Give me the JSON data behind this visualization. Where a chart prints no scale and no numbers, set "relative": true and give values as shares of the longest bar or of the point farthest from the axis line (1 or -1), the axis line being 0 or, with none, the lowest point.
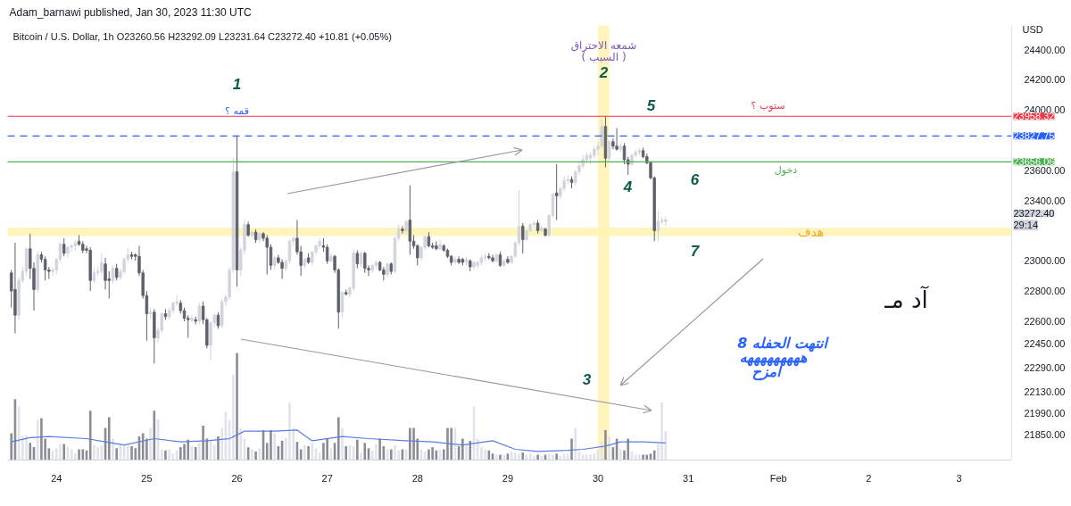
{
  "chart_data": [
    {
      "type": "candlestick",
      "title": "Bitcoin / U.S. Dollar, 1h  O23260.56  H23292.09  L23231.64  C23272.40  +10.81 (+0.05%)",
      "ylabel": "USD",
      "xlim": [
        "2023-01-23T11:00",
        "2023-02-03T14:00"
      ],
      "ylim": [
        21680,
        24560
      ],
      "tick_labels": "y",
      "yticks": [
        {
          "value": 24400,
          "label": "24400.00"
        },
        {
          "value": 24200,
          "label": "24200.00"
        },
        {
          "value": 24000,
          "label": "24000.00"
        },
        {
          "value": 23600,
          "label": "23600.00"
        },
        {
          "value": 23400,
          "label": "23400.00"
        },
        {
          "value": 23000,
          "label": "23000.00"
        },
        {
          "value": 22800,
          "label": "22800.00"
        },
        {
          "value": 22600,
          "label": "22600.00"
        },
        {
          "value": 22450,
          "label": "22450.00"
        },
        {
          "value": 22290,
          "label": "22290.00"
        },
        {
          "value": 22130,
          "label": "22130.00"
        },
        {
          "value": 21990,
          "label": "21990.00"
        },
        {
          "value": 21850,
          "label": "21850.00"
        }
      ],
      "x": [
        "2023-01-23T12:00",
        "2023-01-23T13:00",
        "2023-01-23T14:00",
        "2023-01-23T15:00",
        "2023-01-23T16:00",
        "2023-01-23T17:00",
        "2023-01-23T18:00",
        "2023-01-23T19:00",
        "2023-01-23T20:00",
        "2023-01-23T21:00",
        "2023-01-23T22:00",
        "2023-01-23T23:00",
        "2023-01-24T00:00",
        "2023-01-24T01:00",
        "2023-01-24T02:00",
        "2023-01-24T03:00",
        "2023-01-24T04:00",
        "2023-01-24T05:00",
        "2023-01-24T06:00",
        "2023-01-24T07:00",
        "2023-01-24T08:00",
        "2023-01-24T09:00",
        "2023-01-24T10:00",
        "2023-01-24T11:00",
        "2023-01-24T12:00",
        "2023-01-24T13:00",
        "2023-01-24T14:00",
        "2023-01-24T15:00",
        "2023-01-24T16:00",
        "2023-01-24T17:00",
        "2023-01-24T18:00",
        "2023-01-24T19:00",
        "2023-01-24T20:00",
        "2023-01-24T21:00",
        "2023-01-24T22:00",
        "2023-01-24T23:00",
        "2023-01-25T00:00",
        "2023-01-25T01:00",
        "2023-01-25T02:00",
        "2023-01-25T03:00",
        "2023-01-25T04:00",
        "2023-01-25T05:00",
        "2023-01-25T06:00",
        "2023-01-25T07:00",
        "2023-01-25T08:00",
        "2023-01-25T09:00",
        "2023-01-25T10:00",
        "2023-01-25T11:00",
        "2023-01-25T12:00",
        "2023-01-25T13:00",
        "2023-01-25T14:00",
        "2023-01-25T15:00",
        "2023-01-25T16:00",
        "2023-01-25T17:00",
        "2023-01-25T18:00",
        "2023-01-25T19:00",
        "2023-01-25T20:00",
        "2023-01-25T21:00",
        "2023-01-25T22:00",
        "2023-01-25T23:00",
        "2023-01-26T00:00",
        "2023-01-26T01:00",
        "2023-01-26T02:00",
        "2023-01-26T03:00",
        "2023-01-26T04:00",
        "2023-01-26T05:00",
        "2023-01-26T06:00",
        "2023-01-26T07:00",
        "2023-01-26T08:00",
        "2023-01-26T09:00",
        "2023-01-26T10:00",
        "2023-01-26T11:00",
        "2023-01-26T12:00",
        "2023-01-26T13:00",
        "2023-01-26T14:00",
        "2023-01-26T15:00",
        "2023-01-26T16:00",
        "2023-01-26T17:00",
        "2023-01-26T18:00",
        "2023-01-26T19:00",
        "2023-01-26T20:00",
        "2023-01-26T21:00",
        "2023-01-26T22:00",
        "2023-01-26T23:00",
        "2023-01-27T00:00",
        "2023-01-27T01:00",
        "2023-01-27T02:00",
        "2023-01-27T03:00",
        "2023-01-27T04:00",
        "2023-01-27T05:00",
        "2023-01-27T06:00",
        "2023-01-27T07:00",
        "2023-01-27T08:00",
        "2023-01-27T09:00",
        "2023-01-27T10:00",
        "2023-01-27T11:00",
        "2023-01-27T12:00",
        "2023-01-27T13:00",
        "2023-01-27T14:00",
        "2023-01-27T15:00",
        "2023-01-27T16:00",
        "2023-01-27T17:00",
        "2023-01-27T18:00",
        "2023-01-27T19:00",
        "2023-01-27T20:00",
        "2023-01-27T21:00",
        "2023-01-27T22:00",
        "2023-01-27T23:00",
        "2023-01-28T00:00",
        "2023-01-28T01:00",
        "2023-01-28T02:00",
        "2023-01-28T03:00",
        "2023-01-28T04:00",
        "2023-01-28T05:00",
        "2023-01-28T06:00",
        "2023-01-28T07:00",
        "2023-01-28T08:00",
        "2023-01-28T09:00",
        "2023-01-28T10:00",
        "2023-01-28T11:00",
        "2023-01-28T12:00",
        "2023-01-28T13:00",
        "2023-01-28T14:00",
        "2023-01-28T15:00",
        "2023-01-28T16:00",
        "2023-01-28T17:00",
        "2023-01-28T18:00",
        "2023-01-28T19:00",
        "2023-01-28T20:00",
        "2023-01-28T21:00",
        "2023-01-28T22:00",
        "2023-01-28T23:00",
        "2023-01-29T00:00",
        "2023-01-29T01:00",
        "2023-01-29T02:00",
        "2023-01-29T03:00",
        "2023-01-29T04:00",
        "2023-01-29T05:00",
        "2023-01-29T06:00",
        "2023-01-29T07:00",
        "2023-01-29T08:00",
        "2023-01-29T09:00",
        "2023-01-29T10:00",
        "2023-01-29T11:00",
        "2023-01-29T12:00",
        "2023-01-29T13:00",
        "2023-01-29T14:00",
        "2023-01-29T15:00",
        "2023-01-29T16:00",
        "2023-01-29T17:00",
        "2023-01-29T18:00",
        "2023-01-29T19:00",
        "2023-01-29T20:00",
        "2023-01-29T21:00",
        "2023-01-29T22:00",
        "2023-01-29T23:00",
        "2023-01-30T00:00",
        "2023-01-30T01:00",
        "2023-01-30T02:00",
        "2023-01-30T03:00",
        "2023-01-30T04:00",
        "2023-01-30T05:00",
        "2023-01-30T06:00",
        "2023-01-30T07:00",
        "2023-01-30T08:00",
        "2023-01-30T09:00",
        "2023-01-30T10:00",
        "2023-01-30T11:00",
        "2023-01-30T12:00",
        "2023-01-30T13:00",
        "2023-01-30T14:00",
        "2023-01-30T15:00",
        "2023-01-30T16:00",
        "2023-01-30T17:00",
        "2023-01-30T18:00"
      ],
      "ohlc": [
        [
          22920,
          22940,
          22690,
          22800
        ],
        [
          22810,
          23120,
          22520,
          22640
        ],
        [
          22640,
          22890,
          22610,
          22870
        ],
        [
          22870,
          22960,
          22850,
          22930
        ],
        [
          22930,
          23090,
          22900,
          23080
        ],
        [
          23080,
          23180,
          22880,
          22950
        ],
        [
          22950,
          22990,
          22670,
          22810
        ],
        [
          22810,
          23060,
          22790,
          23040
        ],
        [
          23040,
          23060,
          22990,
          23010
        ],
        [
          23010,
          23030,
          22870,
          22940
        ],
        [
          22940,
          22960,
          22880,
          22930
        ],
        [
          22930,
          22960,
          22900,
          22940
        ],
        [
          22940,
          23020,
          22910,
          23010
        ],
        [
          23010,
          23120,
          22990,
          23110
        ],
        [
          23110,
          23150,
          23030,
          23050
        ],
        [
          23050,
          23100,
          23020,
          23090
        ],
        [
          23090,
          23110,
          23060,
          23100
        ],
        [
          23100,
          23140,
          23070,
          23120
        ],
        [
          23130,
          23170,
          23100,
          23110
        ],
        [
          23110,
          23130,
          23050,
          23070
        ],
        [
          23080,
          23100,
          23050,
          23070
        ],
        [
          23070,
          23090,
          22800,
          22870
        ],
        [
          22870,
          22950,
          22850,
          22920
        ],
        [
          22920,
          22960,
          22900,
          22930
        ],
        [
          22930,
          23050,
          22910,
          22990
        ],
        [
          22980,
          23020,
          22810,
          22870
        ],
        [
          22880,
          22930,
          22750,
          22870
        ],
        [
          22870,
          22970,
          22850,
          22950
        ],
        [
          22950,
          22980,
          22870,
          22890
        ],
        [
          22890,
          22950,
          22870,
          22930
        ],
        [
          22930,
          23020,
          22910,
          23010
        ],
        [
          23010,
          23090,
          22990,
          23040
        ],
        [
          23040,
          23060,
          23010,
          23030
        ],
        [
          23040,
          23050,
          23000,
          23030
        ],
        [
          23030,
          23100,
          22900,
          22920
        ],
        [
          22920,
          22940,
          22750,
          22770
        ],
        [
          22770,
          22800,
          22470,
          22650
        ],
        [
          22650,
          22690,
          22610,
          22660
        ],
        [
          22660,
          22680,
          22320,
          22490
        ],
        [
          22490,
          22560,
          22460,
          22540
        ],
        [
          22540,
          22660,
          22520,
          22650
        ],
        [
          22650,
          22680,
          22610,
          22630
        ],
        [
          22630,
          22690,
          22610,
          22670
        ],
        [
          22670,
          22730,
          22650,
          22720
        ],
        [
          22720,
          22770,
          22700,
          22730
        ],
        [
          22720,
          22740,
          22650,
          22670
        ],
        [
          22670,
          22690,
          22600,
          22620
        ],
        [
          22620,
          22640,
          22490,
          22610
        ],
        [
          22610,
          22640,
          22590,
          22620
        ],
        [
          22610,
          22630,
          22580,
          22600
        ],
        [
          22600,
          22720,
          22580,
          22700
        ],
        [
          22700,
          22730,
          22580,
          22610
        ],
        [
          22610,
          22620,
          22420,
          22440
        ],
        [
          22440,
          22600,
          22340,
          22590
        ],
        [
          22590,
          22650,
          22560,
          22640
        ],
        [
          22640,
          22660,
          22550,
          22570
        ],
        [
          22570,
          22750,
          22550,
          22730
        ],
        [
          22730,
          22780,
          22700,
          22760
        ],
        [
          22760,
          22960,
          22740,
          22940
        ],
        [
          22940,
          23680,
          22920,
          23590
        ],
        [
          23590,
          23827.75,
          22830,
          22940
        ],
        [
          22940,
          23090,
          22900,
          23070
        ],
        [
          23070,
          23280,
          23040,
          23240
        ],
        [
          23240,
          23260,
          23160,
          23170
        ],
        [
          23170,
          23200,
          23150,
          23190
        ],
        [
          23190,
          23210,
          23120,
          23140
        ],
        [
          23140,
          23190,
          23120,
          23180
        ],
        [
          23180,
          23190,
          23130,
          23150
        ],
        [
          23150,
          23170,
          22910,
          23090
        ],
        [
          23090,
          23110,
          22940,
          22970
        ],
        [
          22970,
          23030,
          22940,
          23020
        ],
        [
          23020,
          23040,
          22980,
          22990
        ],
        [
          22990,
          23010,
          22880,
          22950
        ],
        [
          22950,
          23010,
          22930,
          23000
        ],
        [
          23000,
          23140,
          22980,
          23130
        ],
        [
          23130,
          23160,
          23100,
          23150
        ],
        [
          23150,
          23270,
          23040,
          23060
        ],
        [
          23060,
          23100,
          22900,
          22970
        ],
        [
          22970,
          23020,
          22950,
          23010
        ],
        [
          23020,
          23050,
          22980,
          22990
        ],
        [
          22990,
          23060,
          22970,
          23060
        ],
        [
          23060,
          23110,
          23040,
          23100
        ],
        [
          23100,
          23150,
          23080,
          23130
        ],
        [
          23100,
          23150,
          23060,
          23090
        ],
        [
          23090,
          23110,
          22980,
          23000
        ],
        [
          23000,
          23050,
          22990,
          23030
        ],
        [
          23030,
          23040,
          22920,
          22940
        ],
        [
          22940,
          22950,
          22550,
          22660
        ],
        [
          22660,
          22800,
          22620,
          22790
        ],
        [
          22790,
          22810,
          22770,
          22780
        ],
        [
          22780,
          22830,
          22760,
          22820
        ],
        [
          22820,
          23080,
          22800,
          23050
        ],
        [
          23050,
          23070,
          22950,
          22980
        ],
        [
          22980,
          23060,
          22960,
          23050
        ],
        [
          23050,
          23060,
          22920,
          22950
        ],
        [
          22950,
          22970,
          22900,
          22940
        ],
        [
          22940,
          22980,
          22920,
          22970
        ],
        [
          22970,
          23000,
          22950,
          22990
        ],
        [
          22990,
          23000,
          22930,
          22940
        ],
        [
          22940,
          22960,
          22870,
          22910
        ],
        [
          22910,
          22990,
          22890,
          22980
        ],
        [
          22980,
          22990,
          22910,
          22930
        ],
        [
          22930,
          23160,
          22920,
          23150
        ],
        [
          23150,
          23240,
          23130,
          23210
        ],
        [
          23210,
          23230,
          23180,
          23200
        ],
        [
          23200,
          23270,
          23180,
          23260
        ],
        [
          23270,
          23500,
          23040,
          23130
        ],
        [
          23130,
          23170,
          23080,
          23100
        ],
        [
          23100,
          23110,
          22970,
          23020
        ],
        [
          23020,
          23100,
          23000,
          23090
        ],
        [
          23090,
          23170,
          23070,
          23160
        ],
        [
          23160,
          23190,
          23090,
          23100
        ],
        [
          23100,
          23120,
          23080,
          23090
        ],
        [
          23100,
          23130,
          23070,
          23080
        ],
        [
          23080,
          23140,
          23070,
          23110
        ],
        [
          23100,
          23110,
          23060,
          23070
        ],
        [
          23070,
          23080,
          23020,
          23030
        ],
        [
          23030,
          23040,
          22970,
          22990
        ],
        [
          22990,
          23030,
          22980,
          23010
        ],
        [
          23010,
          23030,
          22980,
          22990
        ],
        [
          23010,
          23020,
          22970,
          22990
        ],
        [
          22990,
          23030,
          22970,
          23010
        ],
        [
          23000,
          23010,
          22930,
          22960
        ],
        [
          22960,
          23000,
          22940,
          22990
        ],
        [
          22970,
          23000,
          22950,
          22990
        ],
        [
          22990,
          23040,
          22970,
          23020
        ],
        [
          23020,
          23050,
          23000,
          23030
        ],
        [
          23030,
          23050,
          23010,
          23020
        ],
        [
          23020,
          23040,
          22990,
          23000
        ],
        [
          23000,
          23050,
          22990,
          23040
        ],
        [
          23040,
          23060,
          22960,
          22970
        ],
        [
          22970,
          23010,
          22960,
          23000
        ],
        [
          23010,
          23030,
          22980,
          22990
        ],
        [
          22990,
          23040,
          22980,
          23030
        ],
        [
          23030,
          23130,
          23020,
          23120
        ],
        [
          23120,
          23470,
          23100,
          23230
        ],
        [
          23230,
          23250,
          23050,
          23140
        ],
        [
          23140,
          23210,
          23130,
          23200
        ],
        [
          23200,
          23250,
          23190,
          23240
        ],
        [
          23240,
          23270,
          23220,
          23250
        ],
        [
          23250,
          23270,
          23180,
          23200
        ],
        [
          23200,
          23230,
          23190,
          23220
        ],
        [
          23210,
          23220,
          23160,
          23170
        ],
        [
          23170,
          23310,
          23160,
          23300
        ],
        [
          23300,
          23450,
          23290,
          23440
        ],
        [
          23450,
          23640,
          23270,
          23430
        ],
        [
          23430,
          23490,
          23410,
          23480
        ],
        [
          23480,
          23560,
          23460,
          23530
        ],
        [
          23530,
          23570,
          23510,
          23540
        ],
        [
          23540,
          23560,
          23480,
          23520
        ],
        [
          23520,
          23600,
          23500,
          23590
        ],
        [
          23590,
          23660,
          23570,
          23630
        ],
        [
          23630,
          23700,
          23610,
          23670
        ],
        [
          23670,
          23720,
          23650,
          23700
        ],
        [
          23680,
          23720,
          23640,
          23700
        ],
        [
          23700,
          23760,
          23680,
          23740
        ],
        [
          23740,
          23790,
          23700,
          23760
        ],
        [
          23760,
          23940,
          23740,
          23890
        ],
        [
          23890,
          23958.32,
          23620,
          23680
        ],
        [
          23680,
          23800,
          23660,
          23790
        ],
        [
          23790,
          23810,
          23740,
          23760
        ],
        [
          23760,
          23880,
          23730,
          23740
        ],
        [
          23740,
          23780,
          23720,
          23760
        ],
        [
          23760,
          23780,
          23640,
          23670
        ],
        [
          23670,
          23690,
          23570,
          23640
        ],
        [
          23640,
          23710,
          23630,
          23700
        ],
        [
          23700,
          23740,
          23690,
          23720
        ],
        [
          23720,
          23750,
          23700,
          23730
        ],
        [
          23730,
          23750,
          23680,
          23690
        ],
        [
          23690,
          23710,
          23640,
          23650
        ],
        [
          23650,
          23660,
          23540,
          23550
        ],
        [
          23550,
          23560,
          23130,
          23200
        ],
        [
          23200,
          23330,
          23130,
          23260
        ],
        [
          23260,
          23290,
          23240,
          23270
        ],
        [
          23260.56,
          23292.09,
          23231.64,
          23272.4
        ]
      ],
      "ref_lines": [
        {
          "axis": "y",
          "value": 23958.32,
          "label": "23958.32",
          "color": "#f23645",
          "line_style": "solid"
        },
        {
          "axis": "y",
          "value": 23827.75,
          "label": "23827.75",
          "color": "#2962ff",
          "line_style": "dashed"
        },
        {
          "axis": "y",
          "value": 23656.06,
          "label": "23656.06",
          "color": "#4caf50",
          "line_style": "solid"
        }
      ],
      "bands": [
        {
          "axis": "x",
          "from": "2023-01-30T00:00",
          "to": "2023-01-30T03:00",
          "color": "#fff3b0"
        },
        {
          "axis": "y",
          "from": 23165,
          "to": 23220,
          "color": "#fff3b0"
        }
      ],
      "annotations": [
        "Adam_barnawi published, Jan 30, 2023 11:30 UTC",
        "1",
        "قمه ؟",
        "2",
        "شمعه الاحتراق",
        "( السبب )",
        "3",
        "4",
        "5",
        "ستوب ؟",
        "6",
        "دخول",
        "7",
        "هدف",
        "آد مـ",
        "انتهت الحفله 8",
        "هههههههههه",
        "امزح",
        "23272.40",
        "29:14"
      ]
    },
    {
      "type": "bar",
      "relative": true,
      "tick_labels": "x",
      "xlim": [
        "2023-01-23T11:00",
        "2023-02-03T14:00"
      ],
      "xticks": [
        {
          "value": "2023-01-24",
          "label": "24"
        },
        {
          "value": "2023-01-25",
          "label": "25"
        },
        {
          "value": "2023-01-26",
          "label": "26"
        },
        {
          "value": "2023-01-27",
          "label": "27"
        },
        {
          "value": "2023-01-28",
          "label": "28"
        },
        {
          "value": "2023-01-29",
          "label": "29"
        },
        {
          "value": "2023-01-30",
          "label": "30"
        },
        {
          "value": "2023-01-31",
          "label": "31"
        },
        {
          "value": "2023-02-01",
          "label": "Feb"
        },
        {
          "value": "2023-02-02",
          "label": "2"
        },
        {
          "value": "2023-02-03",
          "label": "3"
        }
      ],
      "x": [
        "2023-01-23T12:00",
        "2023-01-23T13:00",
        "2023-01-23T14:00",
        "2023-01-23T15:00",
        "2023-01-23T16:00",
        "2023-01-23T17:00",
        "2023-01-23T18:00",
        "2023-01-23T19:00",
        "2023-01-23T20:00",
        "2023-01-23T21:00",
        "2023-01-23T22:00",
        "2023-01-23T23:00",
        "2023-01-24T00:00",
        "2023-01-24T01:00",
        "2023-01-24T02:00",
        "2023-01-24T03:00",
        "2023-01-24T04:00",
        "2023-01-24T05:00",
        "2023-01-24T06:00",
        "2023-01-24T07:00",
        "2023-01-24T08:00",
        "2023-01-24T09:00",
        "2023-01-24T10:00",
        "2023-01-24T11:00",
        "2023-01-24T12:00",
        "2023-01-24T13:00",
        "2023-01-24T14:00",
        "2023-01-24T15:00",
        "2023-01-24T16:00",
        "2023-01-24T17:00",
        "2023-01-24T18:00",
        "2023-01-24T19:00",
        "2023-01-24T20:00",
        "2023-01-24T21:00",
        "2023-01-24T22:00",
        "2023-01-24T23:00",
        "2023-01-25T00:00",
        "2023-01-25T01:00",
        "2023-01-25T02:00",
        "2023-01-25T03:00",
        "2023-01-25T04:00",
        "2023-01-25T05:00",
        "2023-01-25T06:00",
        "2023-01-25T07:00",
        "2023-01-25T08:00",
        "2023-01-25T09:00",
        "2023-01-25T10:00",
        "2023-01-25T11:00",
        "2023-01-25T12:00",
        "2023-01-25T13:00",
        "2023-01-25T14:00",
        "2023-01-25T15:00",
        "2023-01-25T16:00",
        "2023-01-25T17:00",
        "2023-01-25T18:00",
        "2023-01-25T19:00",
        "2023-01-25T20:00",
        "2023-01-25T21:00",
        "2023-01-25T22:00",
        "2023-01-25T23:00",
        "2023-01-26T00:00",
        "2023-01-26T01:00",
        "2023-01-26T02:00",
        "2023-01-26T03:00",
        "2023-01-26T04:00",
        "2023-01-26T05:00",
        "2023-01-26T06:00",
        "2023-01-26T07:00",
        "2023-01-26T08:00",
        "2023-01-26T09:00",
        "2023-01-26T10:00",
        "2023-01-26T11:00",
        "2023-01-26T12:00",
        "2023-01-26T13:00",
        "2023-01-26T14:00",
        "2023-01-26T15:00",
        "2023-01-26T16:00",
        "2023-01-26T17:00",
        "2023-01-26T18:00",
        "2023-01-26T19:00",
        "2023-01-26T20:00",
        "2023-01-26T21:00",
        "2023-01-26T22:00",
        "2023-01-26T23:00",
        "2023-01-27T00:00",
        "2023-01-27T01:00",
        "2023-01-27T02:00",
        "2023-01-27T03:00",
        "2023-01-27T04:00",
        "2023-01-27T05:00",
        "2023-01-27T06:00",
        "2023-01-27T07:00",
        "2023-01-27T08:00",
        "2023-01-27T09:00",
        "2023-01-27T10:00",
        "2023-01-27T11:00",
        "2023-01-27T12:00",
        "2023-01-27T13:00",
        "2023-01-27T14:00",
        "2023-01-27T15:00",
        "2023-01-27T16:00",
        "2023-01-27T17:00",
        "2023-01-27T18:00",
        "2023-01-27T19:00",
        "2023-01-27T20:00",
        "2023-01-27T21:00",
        "2023-01-27T22:00",
        "2023-01-27T23:00",
        "2023-01-28T00:00",
        "2023-01-28T01:00",
        "2023-01-28T02:00",
        "2023-01-28T03:00",
        "2023-01-28T04:00",
        "2023-01-28T05:00",
        "2023-01-28T06:00",
        "2023-01-28T07:00",
        "2023-01-28T08:00",
        "2023-01-28T09:00",
        "2023-01-28T10:00",
        "2023-01-28T11:00",
        "2023-01-28T12:00",
        "2023-01-28T13:00",
        "2023-01-28T14:00",
        "2023-01-28T15:00",
        "2023-01-28T16:00",
        "2023-01-28T17:00",
        "2023-01-28T18:00",
        "2023-01-28T19:00",
        "2023-01-28T20:00",
        "2023-01-28T21:00",
        "2023-01-28T22:00",
        "2023-01-28T23:00",
        "2023-01-29T00:00",
        "2023-01-29T01:00",
        "2023-01-29T02:00",
        "2023-01-29T03:00",
        "2023-01-29T04:00",
        "2023-01-29T05:00",
        "2023-01-29T06:00",
        "2023-01-29T07:00",
        "2023-01-29T08:00",
        "2023-01-29T09:00",
        "2023-01-29T10:00",
        "2023-01-29T11:00",
        "2023-01-29T12:00",
        "2023-01-29T13:00",
        "2023-01-29T14:00",
        "2023-01-29T15:00",
        "2023-01-29T16:00",
        "2023-01-29T17:00",
        "2023-01-29T18:00",
        "2023-01-29T19:00",
        "2023-01-29T20:00",
        "2023-01-29T21:00",
        "2023-01-29T22:00",
        "2023-01-29T23:00",
        "2023-01-30T00:00",
        "2023-01-30T01:00",
        "2023-01-30T02:00",
        "2023-01-30T03:00",
        "2023-01-30T04:00",
        "2023-01-30T05:00",
        "2023-01-30T06:00",
        "2023-01-30T07:00",
        "2023-01-30T08:00",
        "2023-01-30T09:00",
        "2023-01-30T10:00",
        "2023-01-30T11:00",
        "2023-01-30T12:00",
        "2023-01-30T13:00",
        "2023-01-30T14:00",
        "2023-01-30T15:00",
        "2023-01-30T16:00",
        "2023-01-30T17:00",
        "2023-01-30T18:00"
      ],
      "series": [
        {
          "type": "bar",
          "colors": [
            "#8a8d96",
            "#8a8d96",
            "#e0e3eb",
            "#e0e3eb",
            "#e0e3eb",
            "#8a8d96",
            "#8a8d96",
            "#e0e3eb",
            "#8a8d96",
            "#8a8d96",
            "#8a8d96",
            "#e0e3eb",
            "#e0e3eb",
            "#e0e3eb",
            "#8a8d96",
            "#e0e3eb",
            "#e0e3eb",
            "#e0e3eb",
            "#8a8d96",
            "#8a8d96",
            "#8a8d96",
            "#8a8d96",
            "#e0e3eb",
            "#e0e3eb",
            "#e0e3eb",
            "#8a8d96",
            "#8a8d96",
            "#e0e3eb",
            "#8a8d96",
            "#e0e3eb",
            "#e0e3eb",
            "#e0e3eb",
            "#8a8d96",
            "#8a8d96",
            "#8a8d96",
            "#8a8d96",
            "#8a8d96",
            "#e0e3eb",
            "#8a8d96",
            "#e0e3eb",
            "#e0e3eb",
            "#8a8d96",
            "#e0e3eb",
            "#e0e3eb",
            "#e0e3eb",
            "#8a8d96",
            "#8a8d96",
            "#8a8d96",
            "#e0e3eb",
            "#8a8d96",
            "#e0e3eb",
            "#8a8d96",
            "#8a8d96",
            "#e0e3eb",
            "#e0e3eb",
            "#8a8d96",
            "#e0e3eb",
            "#e0e3eb",
            "#e0e3eb",
            "#e0e3eb",
            "#8a8d96",
            "#e0e3eb",
            "#e0e3eb",
            "#8a8d96",
            "#e0e3eb",
            "#8a8d96",
            "#e0e3eb",
            "#8a8d96",
            "#8a8d96",
            "#8a8d96",
            "#e0e3eb",
            "#8a8d96",
            "#8a8d96",
            "#e0e3eb",
            "#e0e3eb",
            "#e0e3eb",
            "#8a8d96",
            "#8a8d96",
            "#e0e3eb",
            "#8a8d96",
            "#e0e3eb",
            "#e0e3eb",
            "#e0e3eb",
            "#8a8d96",
            "#8a8d96",
            "#e0e3eb",
            "#8a8d96",
            "#8a8d96",
            "#e0e3eb",
            "#8a8d96",
            "#e0e3eb",
            "#e0e3eb",
            "#8a8d96",
            "#e0e3eb",
            "#8a8d96",
            "#8a8d96",
            "#e0e3eb",
            "#e0e3eb",
            "#8a8d96",
            "#8a8d96",
            "#e0e3eb",
            "#8a8d96",
            "#e0e3eb",
            "#e0e3eb",
            "#8a8d96",
            "#e0e3eb",
            "#8a8d96",
            "#8a8d96",
            "#8a8d96",
            "#e0e3eb",
            "#e0e3eb",
            "#8a8d96",
            "#8a8d96",
            "#8a8d96",
            "#e0e3eb",
            "#8a8d96",
            "#8a8d96",
            "#8a8d96",
            "#e0e3eb",
            "#8a8d96",
            "#8a8d96",
            "#e0e3eb",
            "#8a8d96",
            "#e0e3eb",
            "#e0e3eb",
            "#e0e3eb",
            "#e0e3eb",
            "#8a8d96",
            "#8a8d96",
            "#e0e3eb",
            "#8a8d96",
            "#e0e3eb",
            "#8a8d96",
            "#e0e3eb",
            "#e0e3eb",
            "#e0e3eb",
            "#8a8d96",
            "#e0e3eb",
            "#e0e3eb",
            "#e0e3eb",
            "#8a8d96",
            "#e0e3eb",
            "#8a8d96",
            "#e0e3eb",
            "#e0e3eb",
            "#8a8d96",
            "#e0e3eb",
            "#e0e3eb",
            "#e0e3eb",
            "#8a8d96",
            "#e0e3eb",
            "#e0e3eb",
            "#e0e3eb",
            "#e0e3eb",
            "#e0e3eb",
            "#e0e3eb",
            "#e0e3eb",
            "#e0e3eb",
            "#8a8d96",
            "#e0e3eb",
            "#8a8d96",
            "#8a8d96",
            "#e0e3eb",
            "#8a8d96",
            "#8a8d96",
            "#e0e3eb",
            "#e0e3eb",
            "#e0e3eb",
            "#8a8d96",
            "#8a8d96",
            "#8a8d96",
            "#8a8d96",
            "#e0e3eb",
            "#e0e3eb",
            "#e0e3eb"
          ],
          "values": [
            0.25,
            0.57,
            0.5,
            0.23,
            0.23,
            0.16,
            0.12,
            0.37,
            0.39,
            0.2,
            0.11,
            0.09,
            0.11,
            0.15,
            0.15,
            0.12,
            0.1,
            0.06,
            0.1,
            0.1,
            0.09,
            0.46,
            0.14,
            0.12,
            0.14,
            0.3,
            0.4,
            0.2,
            0.11,
            0.15,
            0.14,
            0.14,
            0.13,
            0.11,
            0.22,
            0.25,
            0.2,
            0.3,
            0.46,
            0.38,
            0.1,
            0.09,
            0.1,
            0.06,
            0.09,
            0.12,
            0.15,
            0.19,
            0.13,
            0.12,
            0.16,
            0.32,
            0.2,
            0.18,
            0.14,
            0.22,
            0.3,
            0.45,
            0.37,
            0.8,
            1.0,
            0.3,
            0.2,
            0.12,
            0.1,
            0.08,
            0.11,
            0.28,
            0.16,
            0.28,
            0.25,
            0.13,
            0.18,
            0.21,
            0.54,
            0.3,
            0.17,
            0.1,
            0.14,
            0.13,
            0.16,
            0.11,
            0.07,
            0.16,
            0.2,
            0.11,
            0.16,
            0.4,
            0.3,
            0.13,
            0.14,
            0.13,
            0.19,
            0.07,
            0.16,
            0.11,
            0.09,
            0.15,
            0.2,
            0.13,
            0.1,
            0.1,
            0.14,
            0.09,
            0.1,
            0.1,
            0.3,
            0.3,
            0.2,
            0.1,
            0.08,
            0.1,
            0.12,
            0.09,
            0.1,
            0.1,
            0.3,
            0.3,
            0.3,
            0.13,
            0.2,
            0.15,
            0.18,
            0.5,
            0.2,
            0.12,
            0.1,
            0.09,
            0.06,
            0.05,
            0.05,
            0.05,
            0.06,
            0.08,
            0.07,
            0.06,
            0.07,
            0.05,
            0.06,
            0.04,
            0.05,
            0.04,
            0.05,
            0.06,
            0.05,
            0.06,
            0.04,
            0.06,
            0.06,
            0.2,
            0.3,
            0.08,
            0.05,
            0.05,
            0.05,
            0.06,
            0.1,
            0.17,
            0.28,
            0.22,
            0.12,
            0.2,
            0.1,
            0.09,
            0.2,
            0.08,
            0.05,
            0.05,
            0.05,
            0.05,
            0.06,
            0.09,
            0.15,
            0.54,
            0.27
          ]
        },
        {
          "type": "line",
          "color": "#5b7fe0",
          "x": [
            "2023-01-23T12:00",
            "2023-01-23T17:00",
            "2023-01-23T22:00",
            "2023-01-24T08:00",
            "2023-01-24T13:00",
            "2023-01-24T18:00",
            "2023-01-25T02:00",
            "2023-01-25T09:00",
            "2023-01-25T16:00",
            "2023-01-25T22:00",
            "2023-01-26T02:00",
            "2023-01-26T10:00",
            "2023-01-26T16:00",
            "2023-01-26T20:00",
            "2023-01-27T04:00",
            "2023-01-27T11:00",
            "2023-01-27T21:00",
            "2023-01-28T04:00",
            "2023-01-28T12:00",
            "2023-01-28T20:00",
            "2023-01-29T02:00",
            "2023-01-29T08:00",
            "2023-01-29T16:00",
            "2023-01-29T20:00",
            "2023-01-30T02:00",
            "2023-01-30T06:00",
            "2023-01-30T12:00",
            "2023-01-30T18:00"
          ],
          "values": [
            0.17,
            0.21,
            0.22,
            0.2,
            0.17,
            0.14,
            0.2,
            0.17,
            0.18,
            0.2,
            0.27,
            0.27,
            0.28,
            0.18,
            0.22,
            0.2,
            0.18,
            0.17,
            0.14,
            0.18,
            0.1,
            0.08,
            0.09,
            0.1,
            0.13,
            0.17,
            0.17,
            0.16
          ]
        }
      ]
    }
  ]
}
